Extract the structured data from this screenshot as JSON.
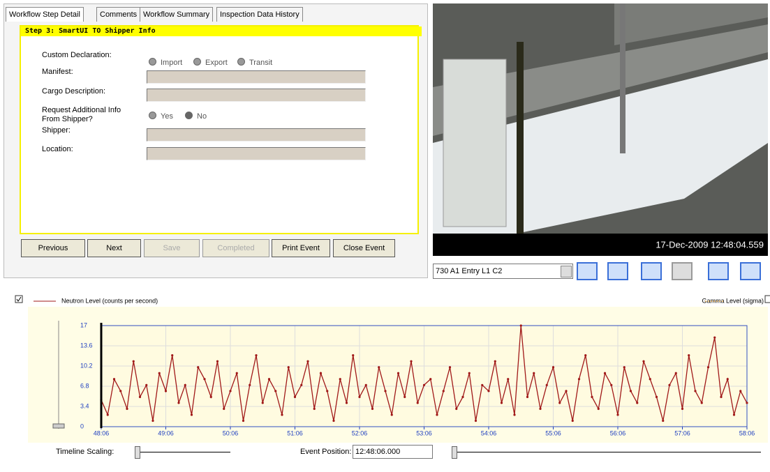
{
  "tabs": [
    "Workflow Step Detail",
    "Comments",
    "Workflow Summary",
    "Inspection Data History"
  ],
  "step_title": "Step 3: SmartUI TO Shipper Info",
  "form": {
    "custom_declaration": {
      "label": "Custom Declaration:",
      "options": [
        "Import",
        "Export",
        "Transit"
      ]
    },
    "manifest": "Manifest:",
    "cargo_description": "Cargo Description:",
    "request_info": {
      "label": "Request Additional Info From Shipper?",
      "options": [
        "Yes",
        "No"
      ]
    },
    "shipper": "Shipper:",
    "location": "Location:"
  },
  "buttons": [
    "Previous",
    "Next",
    "Save",
    "Completed",
    "Print Event",
    "Close Event"
  ],
  "video": {
    "timestamp": "17-Dec-2009 12:48:04.559"
  },
  "camera_select": "730 A1 Entry L1 C2",
  "chart_data": {
    "type": "line",
    "x": [
      48.1,
      48.2,
      48.3,
      48.4,
      48.5,
      48.6,
      48.7,
      48.8,
      48.9,
      49.0,
      49.1,
      49.2,
      49.3,
      49.4,
      49.5,
      49.6,
      49.7,
      49.8,
      49.9,
      50.0,
      50.1,
      50.2,
      50.3,
      50.4,
      50.5,
      50.6,
      50.7,
      50.8,
      50.9,
      51.0,
      51.1,
      51.2,
      51.3,
      51.4,
      51.5,
      51.6,
      51.7,
      51.8,
      51.9,
      52.0,
      52.1,
      52.2,
      52.3,
      52.4,
      52.5,
      52.6,
      52.7,
      52.8,
      52.9,
      53.0,
      53.1,
      53.2,
      53.3,
      53.4,
      53.5,
      53.6,
      53.7,
      53.8,
      53.9,
      54.0,
      54.1,
      54.2,
      54.3,
      54.4,
      54.5,
      54.6,
      54.7,
      54.8,
      54.9,
      55.0,
      55.1,
      55.2,
      55.3,
      55.4,
      55.5,
      55.6,
      55.7,
      55.8,
      55.9,
      56.0,
      56.1,
      56.2,
      56.3,
      56.4,
      56.5,
      56.6,
      56.7,
      56.8,
      56.9,
      57.0,
      57.1,
      57.2,
      57.3,
      57.4,
      57.5,
      57.6,
      57.7,
      57.8,
      57.9,
      58.0,
      58.1
    ],
    "series": [
      {
        "name": "Neutron Level (counts per second)",
        "color": "#a01818",
        "values": [
          4.5,
          2,
          8,
          6,
          3,
          11,
          5,
          7,
          1,
          9,
          6,
          12,
          4,
          7,
          2,
          10,
          8,
          5,
          11,
          3,
          6,
          9,
          1,
          7,
          12,
          4,
          8,
          6,
          2,
          10,
          5,
          7,
          11,
          3,
          9,
          6,
          1,
          8,
          4,
          12,
          5,
          7,
          3,
          10,
          6,
          2,
          9,
          5,
          11,
          4,
          7,
          8,
          2,
          6,
          10,
          3,
          5,
          9,
          1,
          7,
          6,
          11,
          4,
          8,
          2,
          17,
          5,
          9,
          3,
          7,
          10,
          4,
          6,
          1,
          8,
          12,
          5,
          3,
          9,
          7,
          2,
          10,
          6,
          4,
          11,
          8,
          5,
          1,
          7,
          9,
          3,
          12,
          6,
          4,
          10,
          15,
          5,
          8,
          2,
          6,
          4
        ]
      }
    ],
    "gamma_legend": {
      "name": "Gamma Level (sigma)",
      "color": "#f0a020"
    },
    "xlim": [
      48.1,
      58.1
    ],
    "xticks": [
      {
        "value": 48.1,
        "label": "48:06"
      },
      {
        "value": 49.1,
        "label": "49:06"
      },
      {
        "value": 50.1,
        "label": "50:06"
      },
      {
        "value": 51.1,
        "label": "51:06"
      },
      {
        "value": 52.1,
        "label": "52:06"
      },
      {
        "value": 53.1,
        "label": "53:06"
      },
      {
        "value": 54.1,
        "label": "54:06"
      },
      {
        "value": 55.1,
        "label": "55:06"
      },
      {
        "value": 56.1,
        "label": "56:06"
      },
      {
        "value": 57.1,
        "label": "57:06"
      },
      {
        "value": 58.1,
        "label": "58:06"
      }
    ],
    "ylim": [
      0,
      17
    ],
    "yticks": [
      0,
      3.4,
      6.8,
      10.2,
      13.6,
      17
    ],
    "grid": true
  },
  "controls": {
    "timeline_scaling": "Timeline Scaling:",
    "event_position": "Event Position:",
    "event_time": "12:48:06.000"
  }
}
